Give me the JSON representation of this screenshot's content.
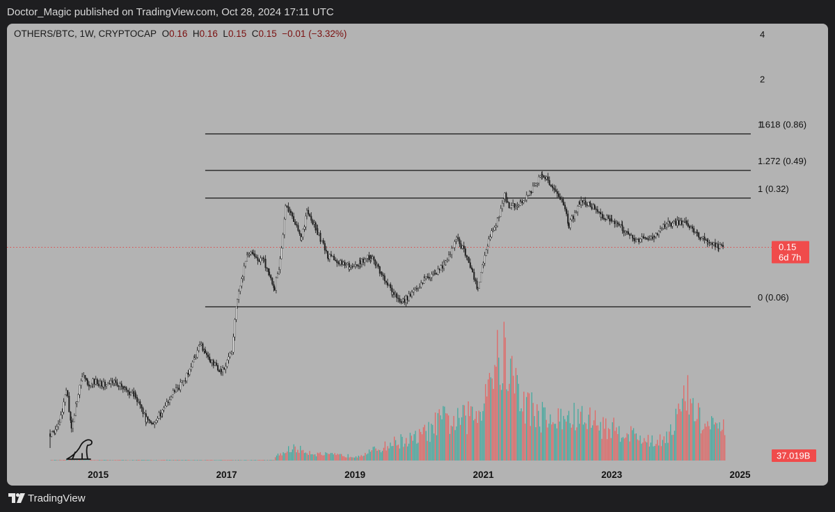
{
  "header": {
    "published_text": "Doctor_Magic published on TradingView.com, Oct 28, 2024 17:11 UTC"
  },
  "legend": {
    "symbol": "OTHERS/BTC, 1W, CRYPTOCAP",
    "open_label": "O",
    "open": "0.16",
    "high_label": "H",
    "high": "0.16",
    "low_label": "L",
    "low": "0.15",
    "close_label": "C",
    "close": "0.15",
    "change": "−0.01 (−3.32%)"
  },
  "price_badge": {
    "price": "0.15",
    "countdown": "6d 7h"
  },
  "volume_badge": "37.019B",
  "footer": {
    "brand": "TradingView"
  },
  "colors": {
    "up": "#26a69a",
    "down": "#ef5350",
    "candle": "#222222",
    "badge": "#f04b4b",
    "fib_line": "#141414",
    "price_line": "#e04848"
  },
  "icons": {
    "watermark": "dinosaur-icon",
    "brand_logo": "tradingview-logo-icon"
  },
  "chart_data": {
    "type": "line",
    "title": "OTHERS/BTC, 1W, CRYPTOCAP",
    "y_scale": "log",
    "y_ticks": [
      "4",
      "2",
      "1"
    ],
    "x_ticks": [
      "2015",
      "2017",
      "2019",
      "2021",
      "2023",
      "2025"
    ],
    "xlim": [
      "2014-04",
      "2025-06"
    ],
    "ylim": [
      0.0055,
      4.6
    ],
    "price_series": [
      {
        "date": "2014-04",
        "value": 0.0085
      },
      {
        "date": "2014-05",
        "value": 0.009
      },
      {
        "date": "2014-06",
        "value": 0.011
      },
      {
        "date": "2014-07",
        "value": 0.017
      },
      {
        "date": "2014-08",
        "value": 0.0095
      },
      {
        "date": "2014-09",
        "value": 0.014
      },
      {
        "date": "2014-10",
        "value": 0.021
      },
      {
        "date": "2014-11",
        "value": 0.018
      },
      {
        "date": "2014-12",
        "value": 0.019
      },
      {
        "date": "2015-02",
        "value": 0.018
      },
      {
        "date": "2015-04",
        "value": 0.019
      },
      {
        "date": "2015-06",
        "value": 0.017
      },
      {
        "date": "2015-08",
        "value": 0.015
      },
      {
        "date": "2015-10",
        "value": 0.0105
      },
      {
        "date": "2015-11",
        "value": 0.0098
      },
      {
        "date": "2016-01",
        "value": 0.012
      },
      {
        "date": "2016-03",
        "value": 0.016
      },
      {
        "date": "2016-05",
        "value": 0.019
      },
      {
        "date": "2016-07",
        "value": 0.026
      },
      {
        "date": "2016-08",
        "value": 0.034
      },
      {
        "date": "2016-09",
        "value": 0.03
      },
      {
        "date": "2016-10",
        "value": 0.026
      },
      {
        "date": "2016-12",
        "value": 0.022
      },
      {
        "date": "2017-02",
        "value": 0.03
      },
      {
        "date": "2017-03",
        "value": 0.07
      },
      {
        "date": "2017-04",
        "value": 0.1
      },
      {
        "date": "2017-05",
        "value": 0.14
      },
      {
        "date": "2017-06",
        "value": 0.13
      },
      {
        "date": "2017-08",
        "value": 0.12
      },
      {
        "date": "2017-09",
        "value": 0.1
      },
      {
        "date": "2017-10",
        "value": 0.08
      },
      {
        "date": "2017-11",
        "value": 0.12
      },
      {
        "date": "2017-12",
        "value": 0.28
      },
      {
        "date": "2018-01",
        "value": 0.25
      },
      {
        "date": "2018-03",
        "value": 0.17
      },
      {
        "date": "2018-04",
        "value": 0.26
      },
      {
        "date": "2018-06",
        "value": 0.19
      },
      {
        "date": "2018-08",
        "value": 0.13
      },
      {
        "date": "2018-10",
        "value": 0.12
      },
      {
        "date": "2018-12",
        "value": 0.11
      },
      {
        "date": "2019-02",
        "value": 0.12
      },
      {
        "date": "2019-04",
        "value": 0.13
      },
      {
        "date": "2019-06",
        "value": 0.1
      },
      {
        "date": "2019-08",
        "value": 0.075
      },
      {
        "date": "2019-10",
        "value": 0.065
      },
      {
        "date": "2019-12",
        "value": 0.075
      },
      {
        "date": "2020-02",
        "value": 0.09
      },
      {
        "date": "2020-04",
        "value": 0.1
      },
      {
        "date": "2020-06",
        "value": 0.12
      },
      {
        "date": "2020-08",
        "value": 0.17
      },
      {
        "date": "2020-10",
        "value": 0.13
      },
      {
        "date": "2020-11",
        "value": 0.1
      },
      {
        "date": "2020-12",
        "value": 0.08
      },
      {
        "date": "2021-01",
        "value": 0.12
      },
      {
        "date": "2021-02",
        "value": 0.17
      },
      {
        "date": "2021-04",
        "value": 0.24
      },
      {
        "date": "2021-05",
        "value": 0.33
      },
      {
        "date": "2021-06",
        "value": 0.28
      },
      {
        "date": "2021-08",
        "value": 0.3
      },
      {
        "date": "2021-10",
        "value": 0.36
      },
      {
        "date": "2021-12",
        "value": 0.46
      },
      {
        "date": "2022-02",
        "value": 0.38
      },
      {
        "date": "2022-04",
        "value": 0.3
      },
      {
        "date": "2022-05",
        "value": 0.21
      },
      {
        "date": "2022-07",
        "value": 0.3
      },
      {
        "date": "2022-09",
        "value": 0.29
      },
      {
        "date": "2022-11",
        "value": 0.24
      },
      {
        "date": "2023-01",
        "value": 0.23
      },
      {
        "date": "2023-03",
        "value": 0.2
      },
      {
        "date": "2023-05",
        "value": 0.17
      },
      {
        "date": "2023-07",
        "value": 0.17
      },
      {
        "date": "2023-09",
        "value": 0.18
      },
      {
        "date": "2023-11",
        "value": 0.21
      },
      {
        "date": "2024-01",
        "value": 0.22
      },
      {
        "date": "2024-03",
        "value": 0.22
      },
      {
        "date": "2024-05",
        "value": 0.18
      },
      {
        "date": "2024-07",
        "value": 0.16
      },
      {
        "date": "2024-09",
        "value": 0.15
      },
      {
        "date": "2024-10",
        "value": 0.15
      }
    ],
    "fib_levels": [
      {
        "label": "1.618 (0.86)",
        "ratio": 1.618,
        "value": 0.86
      },
      {
        "label": "1.272 (0.49)",
        "ratio": 1.272,
        "value": 0.49
      },
      {
        "label": "1 (0.32)",
        "ratio": 1,
        "value": 0.32
      },
      {
        "label": "0 (0.06)",
        "ratio": 0,
        "value": 0.06
      }
    ],
    "fib_range": {
      "start": "2016-09",
      "end": "2025-03"
    },
    "current_price": 0.15,
    "volume_series_B": [
      {
        "date": "2017-10",
        "value": 2
      },
      {
        "date": "2017-12",
        "value": 4
      },
      {
        "date": "2018-01",
        "value": 6
      },
      {
        "date": "2018-06",
        "value": 3
      },
      {
        "date": "2019-01",
        "value": 2
      },
      {
        "date": "2019-06",
        "value": 6
      },
      {
        "date": "2019-09",
        "value": 9
      },
      {
        "date": "2019-12",
        "value": 10
      },
      {
        "date": "2020-03",
        "value": 14
      },
      {
        "date": "2020-05",
        "value": 19
      },
      {
        "date": "2020-08",
        "value": 18
      },
      {
        "date": "2020-12",
        "value": 22
      },
      {
        "date": "2021-02",
        "value": 42
      },
      {
        "date": "2021-05",
        "value": 48
      },
      {
        "date": "2021-08",
        "value": 28
      },
      {
        "date": "2021-11",
        "value": 22
      },
      {
        "date": "2022-02",
        "value": 18
      },
      {
        "date": "2022-05",
        "value": 20
      },
      {
        "date": "2022-09",
        "value": 19
      },
      {
        "date": "2022-12",
        "value": 15
      },
      {
        "date": "2023-03",
        "value": 14
      },
      {
        "date": "2023-06",
        "value": 11
      },
      {
        "date": "2023-09",
        "value": 8
      },
      {
        "date": "2023-12",
        "value": 14
      },
      {
        "date": "2024-03",
        "value": 30
      },
      {
        "date": "2024-06",
        "value": 16
      },
      {
        "date": "2024-09",
        "value": 15
      },
      {
        "date": "2024-10",
        "value": 14
      }
    ],
    "current_volume": "37.019B",
    "grid": false
  }
}
